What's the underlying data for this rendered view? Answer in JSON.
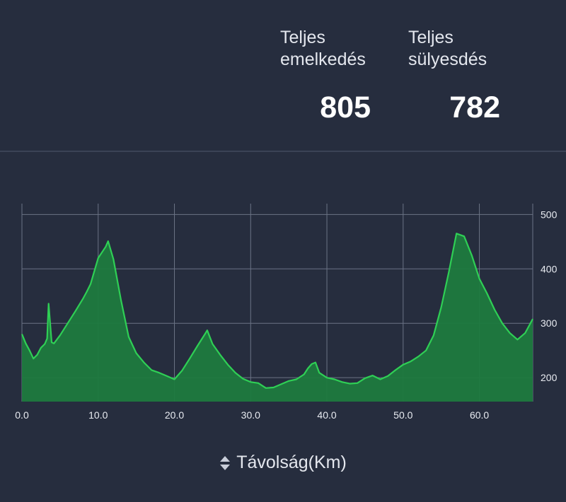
{
  "stats": {
    "gain": {
      "label_line1": "Teljes",
      "label_line2": "emelkedés",
      "value": "805"
    },
    "loss": {
      "label_line1": "Teljes",
      "label_line2": "sülyesdés",
      "value": "782"
    }
  },
  "chart_data": {
    "type": "area",
    "xlabel": "Távolság(Km)",
    "ylabel": "",
    "xlim": [
      0,
      67
    ],
    "ylim": [
      156,
      520
    ],
    "x_ticks": [
      0,
      10,
      20,
      30,
      40,
      50,
      60
    ],
    "x_tick_labels": [
      "0.0",
      "10.0",
      "20.0",
      "30.0",
      "40.0",
      "50.0",
      "60.0"
    ],
    "y_ticks": [
      200,
      300,
      400,
      500
    ],
    "y_tick_labels": [
      "200",
      "300",
      "400",
      "500"
    ],
    "y_axis_side": "right",
    "grid": true,
    "colors": {
      "line": "#2fcf55",
      "fill": "#1d7a3e",
      "grid": "#6b7385",
      "background": "#262d3e"
    },
    "series": [
      {
        "x": [
          0,
          0.5,
          1,
          1.5,
          2,
          2.5,
          3,
          3.3,
          3.5,
          3.7,
          3.9,
          4.2,
          5,
          6,
          7,
          8,
          8.5,
          9,
          10,
          11,
          11.3,
          12,
          13,
          14,
          15,
          16,
          17,
          18,
          19,
          20,
          21,
          22,
          23,
          24,
          24.3,
          25,
          26,
          27,
          28,
          29,
          30,
          31,
          32,
          33,
          34,
          35,
          36,
          37,
          37.5,
          38,
          38.5,
          39,
          40,
          41,
          42,
          43,
          44,
          45,
          46,
          47,
          48,
          49,
          50,
          51,
          52,
          53,
          54,
          55,
          56,
          57,
          58,
          59,
          60,
          61,
          62,
          63,
          64,
          65,
          66,
          67
        ],
        "y": [
          280,
          263,
          250,
          235,
          242,
          255,
          262,
          272,
          336,
          300,
          265,
          263,
          278,
          300,
          322,
          345,
          358,
          372,
          420,
          441,
          451,
          418,
          342,
          275,
          245,
          228,
          214,
          209,
          203,
          197,
          213,
          235,
          258,
          280,
          287,
          262,
          242,
          224,
          209,
          198,
          192,
          190,
          181,
          182,
          188,
          194,
          197,
          206,
          217,
          225,
          228,
          209,
          200,
          197,
          192,
          189,
          190,
          199,
          204,
          197,
          203,
          214,
          224,
          230,
          239,
          250,
          278,
          330,
          395,
          465,
          460,
          425,
          382,
          355,
          325,
          300,
          282,
          270,
          282,
          308
        ]
      }
    ]
  }
}
